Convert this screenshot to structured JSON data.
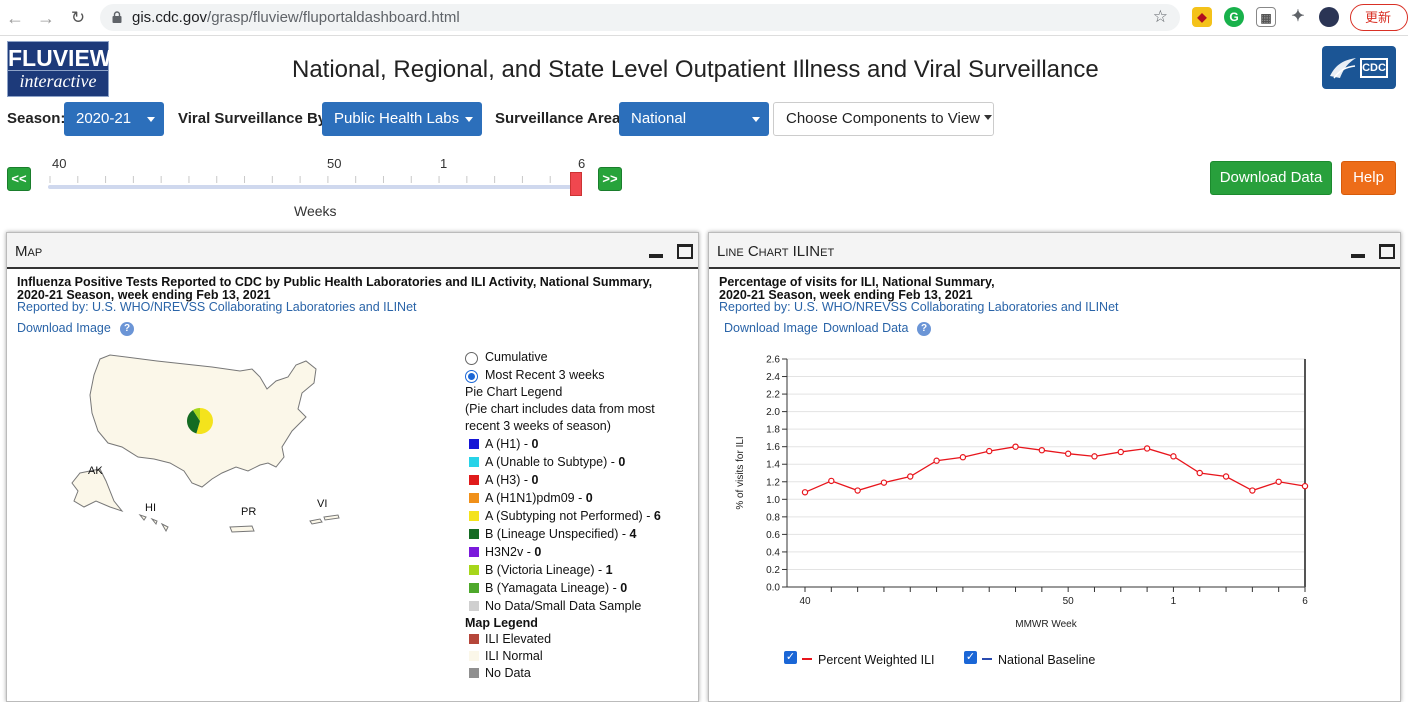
{
  "browser": {
    "url_host": "gis.cdc.gov",
    "url_path": "/grasp/fluview/fluportaldashboard.html",
    "update_label": "更新"
  },
  "header": {
    "logo_line1": "FLUVIEW",
    "logo_line2": "interactive",
    "title": "National, Regional, and State Level Outpatient Illness and Viral Surveillance",
    "cdc_logo": "CDC"
  },
  "controls": {
    "season_label": "Season:",
    "season_value": "2020-21",
    "viral_label": "Viral Surveillance By:",
    "viral_value": "Public Health Labs",
    "area_label": "Surveillance Area:",
    "area_value": "National",
    "choose_label": "Choose Components to View"
  },
  "slider": {
    "prev_label": "<<",
    "next_label": ">>",
    "tick_labels": [
      "40",
      "50",
      "1",
      "6"
    ],
    "units_label": "Weeks",
    "position_fraction": 1.0
  },
  "actions": {
    "download_label": "Download Data",
    "help_label": "Help"
  },
  "map_panel": {
    "header": "Map",
    "title_line1": "Influenza Positive Tests Reported to CDC by Public Health Laboratories and ILI Activity, National Summary,",
    "title_line2": "2020-21 Season, week ending Feb 13, 2021",
    "reported_by": "Reported by: U.S. WHO/NREVSS Collaborating Laboratories and ILINet",
    "download_image": "Download Image",
    "help_glyph": "?",
    "region_labels": [
      "AK",
      "HI",
      "PR",
      "VI"
    ],
    "radio_cumulative": "Cumulative",
    "radio_recent": "Most Recent 3 weeks",
    "pie_legend_title": "Pie Chart Legend",
    "pie_legend_note1": "(Pie chart includes data from most",
    "pie_legend_note2": "recent 3 weeks of season)",
    "pie_items": [
      {
        "label": "A (H1)",
        "value": "0",
        "color": "#1515d6"
      },
      {
        "label": "A (Unable to Subtype)",
        "value": "0",
        "color": "#27d3e8"
      },
      {
        "label": "A (H3)",
        "value": "0",
        "color": "#e01b1b"
      },
      {
        "label": "A (H1N1)pdm09",
        "value": "0",
        "color": "#f0901a"
      },
      {
        "label": "A (Subtyping not Performed)",
        "value": "6",
        "color": "#f4e31c"
      },
      {
        "label": "B (Lineage Unspecified)",
        "value": "4",
        "color": "#146b22"
      },
      {
        "label": "H3N2v",
        "value": "0",
        "color": "#7a1adb"
      },
      {
        "label": "B (Victoria Lineage)",
        "value": "1",
        "color": "#a6d61a"
      },
      {
        "label": "B (Yamagata Lineage)",
        "value": "0",
        "color": "#4ea82b"
      },
      {
        "label": "No Data/Small Data Sample",
        "value": "",
        "color": "#cfcfcf"
      }
    ],
    "map_legend_title": "Map Legend",
    "map_items": [
      {
        "label": "ILI Elevated",
        "color": "#b5463a"
      },
      {
        "label": "ILI Normal",
        "color": "#fbf7e9"
      },
      {
        "label": "No Data",
        "color": "#8f8f8f"
      }
    ],
    "map_fill": "#fbf7e9"
  },
  "line_panel": {
    "header": "Line Chart ILINet",
    "title_line1": "Percentage of visits for ILI, National Summary,",
    "title_line2": "2020-21 Season, week ending Feb 13, 2021",
    "reported_by": "Reported by: U.S. WHO/NREVSS Collaborating Laboratories and ILINet",
    "download_image": "Download Image",
    "download_data": "Download Data",
    "help_glyph": "?",
    "legend_weighted": "Percent Weighted ILI",
    "legend_baseline": "National Baseline",
    "check_glyph": "✓"
  },
  "chart_data": {
    "type": "line",
    "xlabel": "MMWR Week",
    "ylabel": "% of visits for ILI",
    "ylim": [
      0,
      2.6
    ],
    "yticks": [
      "0.0",
      "0.2",
      "0.4",
      "0.6",
      "0.8",
      "1.0",
      "1.2",
      "1.4",
      "1.6",
      "1.8",
      "2.0",
      "2.2",
      "2.4",
      "2.6"
    ],
    "x": [
      "40",
      "41",
      "42",
      "43",
      "44",
      "45",
      "46",
      "47",
      "48",
      "49",
      "50",
      "51",
      "52",
      "53",
      "1",
      "2",
      "3",
      "4",
      "5",
      "6"
    ],
    "xtick_labels": {
      "40": "40",
      "50": "50",
      "1": "1",
      "6": "6"
    },
    "series": [
      {
        "name": "Percent Weighted ILI",
        "color": "#e8151c",
        "values": [
          1.08,
          1.21,
          1.1,
          1.19,
          1.26,
          1.44,
          1.48,
          1.55,
          1.6,
          1.56,
          1.52,
          1.49,
          1.54,
          1.58,
          1.49,
          1.3,
          1.26,
          1.1,
          1.2,
          1.15
        ]
      }
    ],
    "baseline_color": "#2a4bb0",
    "grid": true,
    "current_week": "6"
  }
}
